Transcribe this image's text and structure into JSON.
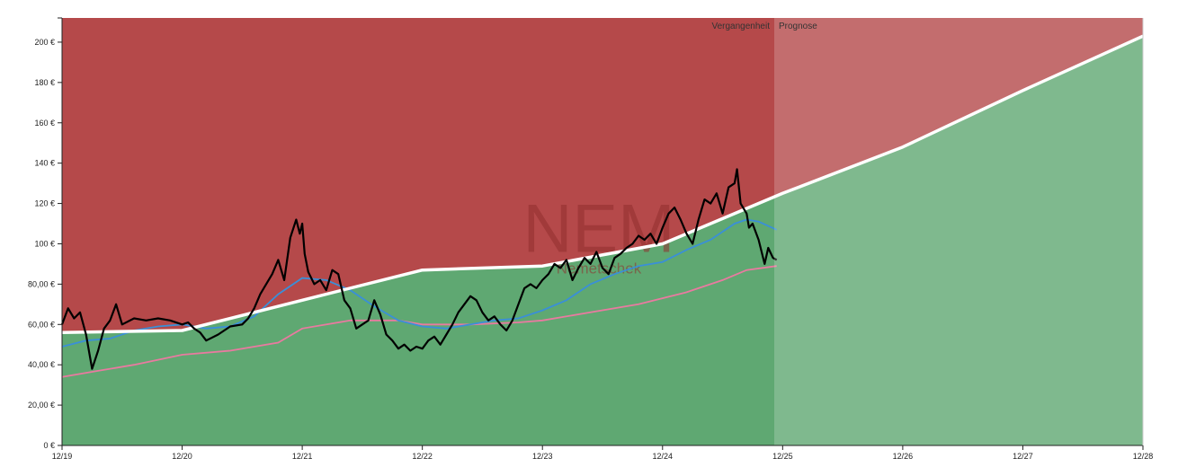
{
  "chart_data": {
    "type": "line",
    "x_ticks": [
      "12/19",
      "12/20",
      "12/21",
      "12/22",
      "12/23",
      "12/24",
      "12/25",
      "12/26",
      "12/27",
      "12/28"
    ],
    "y_ticks": [
      "0 €",
      "20,00 €",
      "40,00 €",
      "60,00 €",
      "80,00 €",
      "100 €",
      "120 €",
      "140 €",
      "160 €",
      "180 €",
      "200 €"
    ],
    "ylim": [
      0,
      212
    ],
    "xlim": [
      2019.0,
      2028.0
    ],
    "period_labels": {
      "past": "Vergangenheit",
      "forecast": "Prognose"
    },
    "watermark": {
      "ticker": "NEM",
      "name": "Nemetschek"
    },
    "colors": {
      "red_zone": "#b5494a",
      "green_zone": "#5fa872",
      "fair_value_line": "#ffffff",
      "price_line": "#000000",
      "ma_short": "#3a8fd8",
      "ma_long": "#e97aa0",
      "forecast_overlay": "#ffffff"
    },
    "fair_value": [
      {
        "x": 2019.0,
        "y": 56
      },
      {
        "x": 2020.0,
        "y": 57
      },
      {
        "x": 2021.0,
        "y": 72
      },
      {
        "x": 2022.0,
        "y": 87
      },
      {
        "x": 2023.0,
        "y": 89
      },
      {
        "x": 2024.0,
        "y": 100
      },
      {
        "x": 2025.0,
        "y": 125
      },
      {
        "x": 2026.0,
        "y": 148
      },
      {
        "x": 2027.0,
        "y": 176
      },
      {
        "x": 2028.0,
        "y": 203
      }
    ],
    "price": [
      {
        "x": 2019.0,
        "y": 60
      },
      {
        "x": 2019.05,
        "y": 68
      },
      {
        "x": 2019.1,
        "y": 63
      },
      {
        "x": 2019.15,
        "y": 66
      },
      {
        "x": 2019.2,
        "y": 55
      },
      {
        "x": 2019.25,
        "y": 38
      },
      {
        "x": 2019.3,
        "y": 47
      },
      {
        "x": 2019.35,
        "y": 58
      },
      {
        "x": 2019.4,
        "y": 62
      },
      {
        "x": 2019.45,
        "y": 70
      },
      {
        "x": 2019.5,
        "y": 60
      },
      {
        "x": 2019.6,
        "y": 63
      },
      {
        "x": 2019.7,
        "y": 62
      },
      {
        "x": 2019.8,
        "y": 63
      },
      {
        "x": 2019.9,
        "y": 62
      },
      {
        "x": 2020.0,
        "y": 60
      },
      {
        "x": 2020.05,
        "y": 61
      },
      {
        "x": 2020.1,
        "y": 58
      },
      {
        "x": 2020.15,
        "y": 56
      },
      {
        "x": 2020.2,
        "y": 52
      },
      {
        "x": 2020.3,
        "y": 55
      },
      {
        "x": 2020.4,
        "y": 59
      },
      {
        "x": 2020.5,
        "y": 60
      },
      {
        "x": 2020.55,
        "y": 63
      },
      {
        "x": 2020.6,
        "y": 68
      },
      {
        "x": 2020.65,
        "y": 75
      },
      {
        "x": 2020.7,
        "y": 80
      },
      {
        "x": 2020.75,
        "y": 85
      },
      {
        "x": 2020.8,
        "y": 92
      },
      {
        "x": 2020.85,
        "y": 82
      },
      {
        "x": 2020.9,
        "y": 103
      },
      {
        "x": 2020.95,
        "y": 112
      },
      {
        "x": 2020.98,
        "y": 105
      },
      {
        "x": 2021.0,
        "y": 110
      },
      {
        "x": 2021.02,
        "y": 95
      },
      {
        "x": 2021.05,
        "y": 86
      },
      {
        "x": 2021.1,
        "y": 80
      },
      {
        "x": 2021.15,
        "y": 82
      },
      {
        "x": 2021.2,
        "y": 77
      },
      {
        "x": 2021.25,
        "y": 87
      },
      {
        "x": 2021.3,
        "y": 85
      },
      {
        "x": 2021.35,
        "y": 72
      },
      {
        "x": 2021.4,
        "y": 68
      },
      {
        "x": 2021.45,
        "y": 58
      },
      {
        "x": 2021.5,
        "y": 60
      },
      {
        "x": 2021.55,
        "y": 62
      },
      {
        "x": 2021.6,
        "y": 72
      },
      {
        "x": 2021.65,
        "y": 65
      },
      {
        "x": 2021.7,
        "y": 55
      },
      {
        "x": 2021.75,
        "y": 52
      },
      {
        "x": 2021.8,
        "y": 48
      },
      {
        "x": 2021.85,
        "y": 50
      },
      {
        "x": 2021.9,
        "y": 47
      },
      {
        "x": 2021.95,
        "y": 49
      },
      {
        "x": 2022.0,
        "y": 48
      },
      {
        "x": 2022.05,
        "y": 52
      },
      {
        "x": 2022.1,
        "y": 54
      },
      {
        "x": 2022.15,
        "y": 50
      },
      {
        "x": 2022.2,
        "y": 55
      },
      {
        "x": 2022.25,
        "y": 60
      },
      {
        "x": 2022.3,
        "y": 66
      },
      {
        "x": 2022.35,
        "y": 70
      },
      {
        "x": 2022.4,
        "y": 74
      },
      {
        "x": 2022.45,
        "y": 72
      },
      {
        "x": 2022.5,
        "y": 66
      },
      {
        "x": 2022.55,
        "y": 62
      },
      {
        "x": 2022.6,
        "y": 64
      },
      {
        "x": 2022.65,
        "y": 60
      },
      {
        "x": 2022.7,
        "y": 57
      },
      {
        "x": 2022.75,
        "y": 62
      },
      {
        "x": 2022.8,
        "y": 70
      },
      {
        "x": 2022.85,
        "y": 78
      },
      {
        "x": 2022.9,
        "y": 80
      },
      {
        "x": 2022.95,
        "y": 78
      },
      {
        "x": 2023.0,
        "y": 82
      },
      {
        "x": 2023.05,
        "y": 85
      },
      {
        "x": 2023.1,
        "y": 90
      },
      {
        "x": 2023.15,
        "y": 88
      },
      {
        "x": 2023.2,
        "y": 92
      },
      {
        "x": 2023.25,
        "y": 82
      },
      {
        "x": 2023.3,
        "y": 88
      },
      {
        "x": 2023.35,
        "y": 93
      },
      {
        "x": 2023.4,
        "y": 90
      },
      {
        "x": 2023.45,
        "y": 96
      },
      {
        "x": 2023.5,
        "y": 88
      },
      {
        "x": 2023.55,
        "y": 85
      },
      {
        "x": 2023.6,
        "y": 93
      },
      {
        "x": 2023.65,
        "y": 95
      },
      {
        "x": 2023.7,
        "y": 98
      },
      {
        "x": 2023.75,
        "y": 100
      },
      {
        "x": 2023.8,
        "y": 104
      },
      {
        "x": 2023.85,
        "y": 102
      },
      {
        "x": 2023.9,
        "y": 105
      },
      {
        "x": 2023.95,
        "y": 100
      },
      {
        "x": 2024.0,
        "y": 108
      },
      {
        "x": 2024.05,
        "y": 115
      },
      {
        "x": 2024.1,
        "y": 118
      },
      {
        "x": 2024.15,
        "y": 112
      },
      {
        "x": 2024.2,
        "y": 105
      },
      {
        "x": 2024.25,
        "y": 100
      },
      {
        "x": 2024.3,
        "y": 112
      },
      {
        "x": 2024.35,
        "y": 122
      },
      {
        "x": 2024.4,
        "y": 120
      },
      {
        "x": 2024.45,
        "y": 125
      },
      {
        "x": 2024.5,
        "y": 115
      },
      {
        "x": 2024.55,
        "y": 128
      },
      {
        "x": 2024.6,
        "y": 130
      },
      {
        "x": 2024.62,
        "y": 137
      },
      {
        "x": 2024.65,
        "y": 120
      },
      {
        "x": 2024.7,
        "y": 115
      },
      {
        "x": 2024.72,
        "y": 108
      },
      {
        "x": 2024.75,
        "y": 110
      },
      {
        "x": 2024.8,
        "y": 102
      },
      {
        "x": 2024.85,
        "y": 90
      },
      {
        "x": 2024.88,
        "y": 98
      },
      {
        "x": 2024.92,
        "y": 93
      },
      {
        "x": 2024.95,
        "y": 92
      }
    ],
    "ma_short": [
      {
        "x": 2019.0,
        "y": 49
      },
      {
        "x": 2019.2,
        "y": 52
      },
      {
        "x": 2019.4,
        "y": 53
      },
      {
        "x": 2019.6,
        "y": 57
      },
      {
        "x": 2019.8,
        "y": 59
      },
      {
        "x": 2020.0,
        "y": 60
      },
      {
        "x": 2020.2,
        "y": 58
      },
      {
        "x": 2020.4,
        "y": 59
      },
      {
        "x": 2020.6,
        "y": 64
      },
      {
        "x": 2020.8,
        "y": 75
      },
      {
        "x": 2021.0,
        "y": 83
      },
      {
        "x": 2021.2,
        "y": 82
      },
      {
        "x": 2021.4,
        "y": 77
      },
      {
        "x": 2021.6,
        "y": 69
      },
      {
        "x": 2021.8,
        "y": 62
      },
      {
        "x": 2022.0,
        "y": 59
      },
      {
        "x": 2022.2,
        "y": 58
      },
      {
        "x": 2022.4,
        "y": 60
      },
      {
        "x": 2022.6,
        "y": 62
      },
      {
        "x": 2022.8,
        "y": 63
      },
      {
        "x": 2023.0,
        "y": 67
      },
      {
        "x": 2023.2,
        "y": 72
      },
      {
        "x": 2023.4,
        "y": 80
      },
      {
        "x": 2023.6,
        "y": 85
      },
      {
        "x": 2023.8,
        "y": 89
      },
      {
        "x": 2024.0,
        "y": 91
      },
      {
        "x": 2024.2,
        "y": 97
      },
      {
        "x": 2024.4,
        "y": 102
      },
      {
        "x": 2024.6,
        "y": 110
      },
      {
        "x": 2024.7,
        "y": 112
      },
      {
        "x": 2024.8,
        "y": 111
      },
      {
        "x": 2024.95,
        "y": 107
      }
    ],
    "ma_long": [
      {
        "x": 2019.0,
        "y": 34
      },
      {
        "x": 2019.3,
        "y": 37
      },
      {
        "x": 2019.6,
        "y": 40
      },
      {
        "x": 2020.0,
        "y": 45
      },
      {
        "x": 2020.4,
        "y": 47
      },
      {
        "x": 2020.8,
        "y": 51
      },
      {
        "x": 2021.0,
        "y": 58
      },
      {
        "x": 2021.4,
        "y": 62
      },
      {
        "x": 2021.8,
        "y": 62
      },
      {
        "x": 2022.0,
        "y": 60
      },
      {
        "x": 2022.4,
        "y": 60
      },
      {
        "x": 2022.8,
        "y": 61
      },
      {
        "x": 2023.0,
        "y": 62
      },
      {
        "x": 2023.4,
        "y": 66
      },
      {
        "x": 2023.8,
        "y": 70
      },
      {
        "x": 2024.2,
        "y": 76
      },
      {
        "x": 2024.5,
        "y": 82
      },
      {
        "x": 2024.7,
        "y": 87
      },
      {
        "x": 2024.95,
        "y": 89
      }
    ],
    "forecast_start_x": 2024.93
  }
}
